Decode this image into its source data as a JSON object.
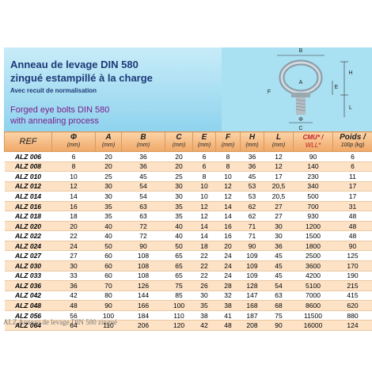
{
  "header": {
    "title_line1": "Anneau de levage DIN 580",
    "title_line2": "zingué estampillé à la charge",
    "subtitle": "Avec recuit de normalisation",
    "english_line1": "Forged eye bolts DIN 580",
    "english_line2": "with annealing process"
  },
  "diagram": {
    "labels": [
      "B",
      "H",
      "E",
      "A",
      "F",
      "Φ",
      "L",
      "C"
    ]
  },
  "table": {
    "columns": [
      {
        "top": "REF"
      },
      {
        "top": "Φ",
        "bottom": "(mm)"
      },
      {
        "top": "A",
        "bottom": "(mm)"
      },
      {
        "top": "B",
        "bottom": "(mm)"
      },
      {
        "top": "C",
        "bottom": "(mm)"
      },
      {
        "top": "E",
        "bottom": "(mm)"
      },
      {
        "top": "F",
        "bottom": "(mm)"
      },
      {
        "top": "H",
        "bottom": "(mm)"
      },
      {
        "top": "L",
        "bottom": "(mm)"
      },
      {
        "top": "CMU* /",
        "bottom": "WLL*"
      },
      {
        "top": "Poids /",
        "bottom": "100p (kg)"
      }
    ],
    "rows": [
      [
        "ALZ 006",
        "6",
        "20",
        "36",
        "20",
        "6",
        "8",
        "36",
        "12",
        "90",
        "6"
      ],
      [
        "ALZ 008",
        "8",
        "20",
        "36",
        "20",
        "6",
        "8",
        "36",
        "12",
        "140",
        "6"
      ],
      [
        "ALZ 010",
        "10",
        "25",
        "45",
        "25",
        "8",
        "10",
        "45",
        "17",
        "230",
        "11"
      ],
      [
        "ALZ 012",
        "12",
        "30",
        "54",
        "30",
        "10",
        "12",
        "53",
        "20,5",
        "340",
        "17"
      ],
      [
        "ALZ 014",
        "14",
        "30",
        "54",
        "30",
        "10",
        "12",
        "53",
        "20,5",
        "500",
        "17"
      ],
      [
        "ALZ 016",
        "16",
        "35",
        "63",
        "35",
        "12",
        "14",
        "62",
        "27",
        "700",
        "31"
      ],
      [
        "ALZ 018",
        "18",
        "35",
        "63",
        "35",
        "12",
        "14",
        "62",
        "27",
        "930",
        "48"
      ],
      [
        "ALZ 020",
        "20",
        "40",
        "72",
        "40",
        "14",
        "16",
        "71",
        "30",
        "1200",
        "48"
      ],
      [
        "ALZ 022",
        "22",
        "40",
        "72",
        "40",
        "14",
        "16",
        "71",
        "30",
        "1500",
        "48"
      ],
      [
        "ALZ 024",
        "24",
        "50",
        "90",
        "50",
        "18",
        "20",
        "90",
        "36",
        "1800",
        "90"
      ],
      [
        "ALZ 027",
        "27",
        "60",
        "108",
        "65",
        "22",
        "24",
        "109",
        "45",
        "2500",
        "125"
      ],
      [
        "ALZ 030",
        "30",
        "60",
        "108",
        "65",
        "22",
        "24",
        "109",
        "45",
        "3600",
        "170"
      ],
      [
        "ALZ 033",
        "33",
        "60",
        "108",
        "65",
        "22",
        "24",
        "109",
        "45",
        "4200",
        "190"
      ],
      [
        "ALZ 036",
        "36",
        "70",
        "126",
        "75",
        "26",
        "28",
        "128",
        "54",
        "5100",
        "215"
      ],
      [
        "ALZ 042",
        "42",
        "80",
        "144",
        "85",
        "30",
        "32",
        "147",
        "63",
        "7000",
        "415"
      ],
      [
        "ALZ 048",
        "48",
        "90",
        "166",
        "100",
        "35",
        "38",
        "168",
        "68",
        "8600",
        "620"
      ],
      [
        "ALZ 056",
        "56",
        "100",
        "184",
        "110",
        "38",
        "41",
        "187",
        "75",
        "11500",
        "880"
      ],
      [
        "ALZ 064",
        "64",
        "110",
        "206",
        "120",
        "42",
        "48",
        "208",
        "90",
        "16000",
        "124"
      ]
    ]
  },
  "caption": "ALZ Anneau de levage DIN 580 zingué"
}
